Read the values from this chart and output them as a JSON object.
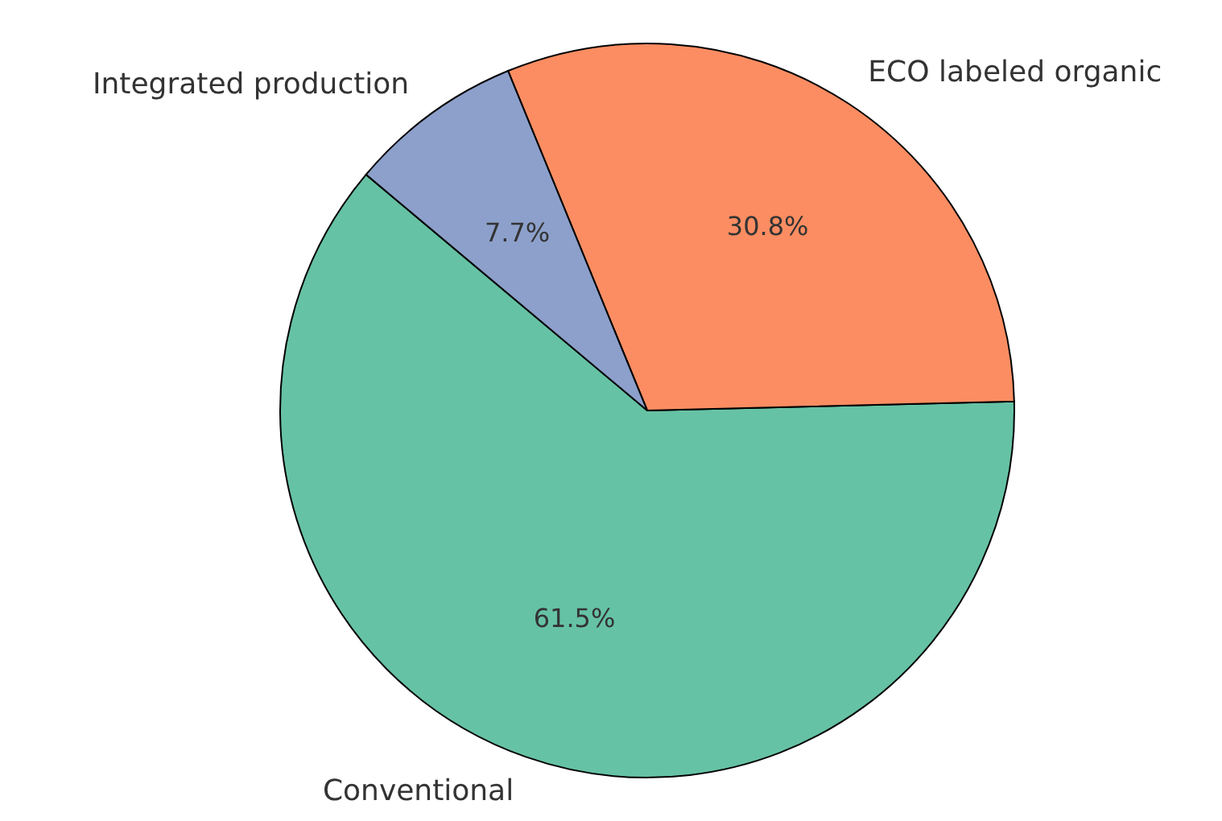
{
  "chart_data": {
    "type": "pie",
    "categories": [
      "Conventional",
      "ECO labeled organic",
      "Integrated production"
    ],
    "values": [
      61.5,
      30.8,
      7.7
    ],
    "colors": [
      "#66c2a5",
      "#fc8d62",
      "#8da0cb"
    ],
    "value_labels": [
      "61.5%",
      "30.8%",
      "7.7%"
    ],
    "legend": false
  }
}
